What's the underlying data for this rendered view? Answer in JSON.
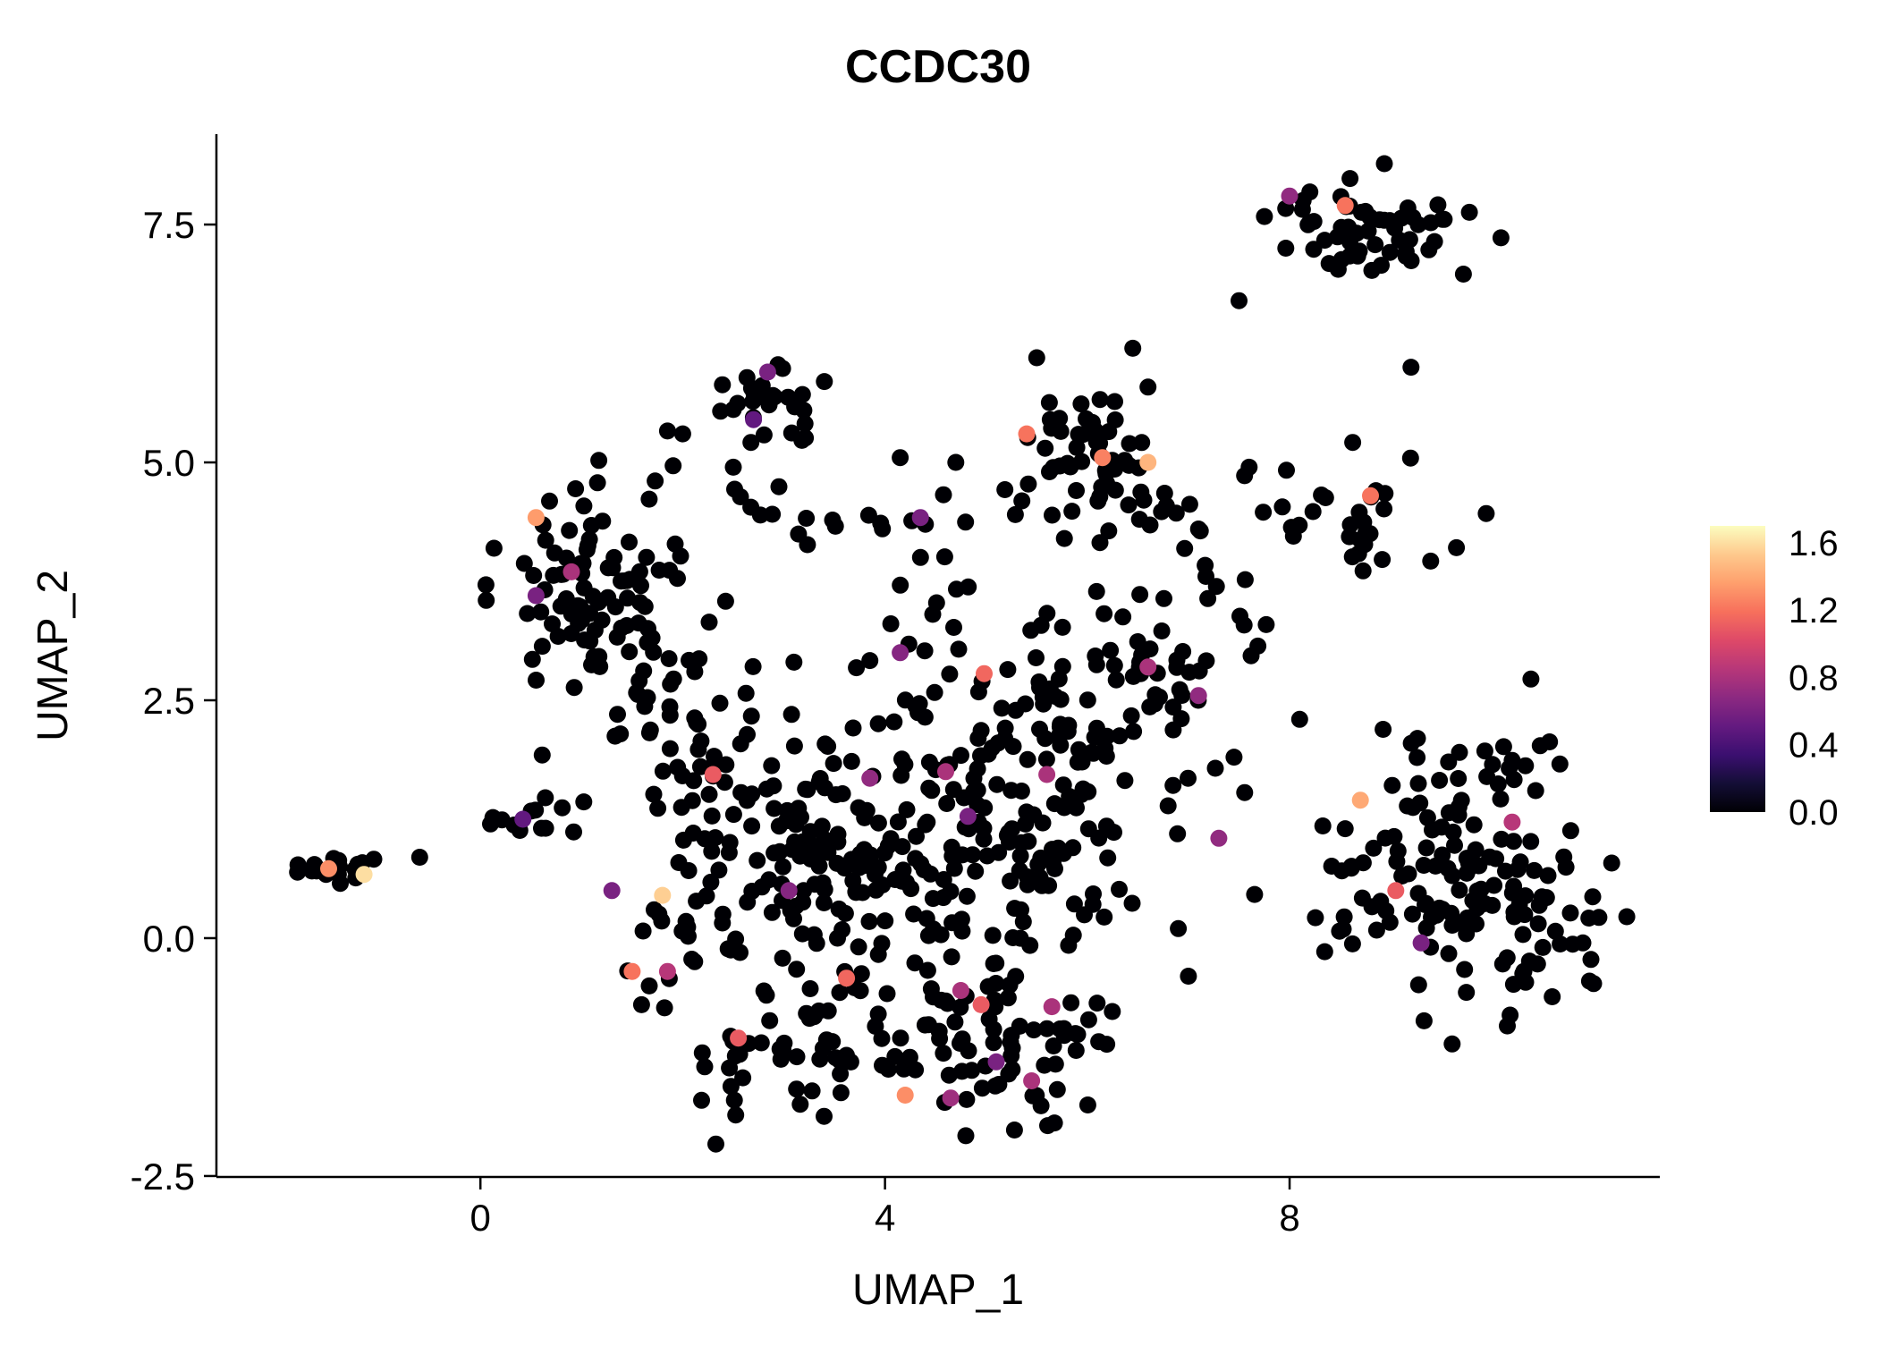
{
  "title": "CCDC30",
  "chart_data": {
    "type": "scatter",
    "title": "CCDC30",
    "xlabel": "UMAP_1",
    "ylabel": "UMAP_2",
    "xlim": [
      -2.61,
      11.66
    ],
    "ylim": [
      -2.51,
      8.45
    ],
    "x_ticks": [
      [
        0,
        "0"
      ],
      [
        4,
        "4"
      ],
      [
        8,
        "8"
      ]
    ],
    "y_ticks": [
      [
        -2.5,
        "-2.5"
      ],
      [
        0,
        "0.0"
      ],
      [
        2.5,
        "2.5"
      ],
      [
        5,
        "5.0"
      ],
      [
        7.5,
        "7.5"
      ]
    ],
    "grid": false,
    "legend_position": "right",
    "point_color_zero": "#000004",
    "legend": {
      "vmin": 0,
      "vmax": 1.7,
      "ticks": [
        [
          0,
          "0.0"
        ],
        [
          0.4,
          "0.4"
        ],
        [
          0.8,
          "0.8"
        ],
        [
          1.2,
          "1.2"
        ],
        [
          1.6,
          "1.6"
        ]
      ],
      "gradient": [
        "#000004",
        "#140e36",
        "#3b0f70",
        "#641a80",
        "#8c2981",
        "#b73779",
        "#de4968",
        "#f7705c",
        "#fe9f6d",
        "#fec98d",
        "#fcfdbf"
      ]
    },
    "clusters": [
      {
        "x": -1.45,
        "y": 0.7,
        "sx": 0.2,
        "sy": 0.11,
        "n": 20
      },
      {
        "x": 0.45,
        "y": 1.25,
        "sx": 0.16,
        "sy": 0.09,
        "n": 11
      },
      {
        "x": 1.25,
        "y": 3.65,
        "sx": 0.42,
        "sy": 0.55,
        "n": 90
      },
      {
        "x": 1.7,
        "y": 2.4,
        "sx": 0.45,
        "sy": 0.45,
        "n": 30
      },
      {
        "x": 2.85,
        "y": 5.6,
        "sx": 0.28,
        "sy": 0.25,
        "n": 26
      },
      {
        "x": 3.3,
        "y": 4.35,
        "sx": 0.85,
        "sy": 0.22,
        "n": 22
      },
      {
        "x": 5.95,
        "y": 5.15,
        "sx": 0.42,
        "sy": 0.38,
        "n": 48
      },
      {
        "x": 6.5,
        "y": 4.4,
        "sx": 0.4,
        "sy": 0.3,
        "n": 18
      },
      {
        "x": 8.45,
        "y": 4.35,
        "sx": 0.45,
        "sy": 0.3,
        "n": 30
      },
      {
        "x": 8.8,
        "y": 7.5,
        "sx": 0.5,
        "sy": 0.26,
        "n": 58
      },
      {
        "x": 4.1,
        "y": 0.9,
        "sx": 1.0,
        "sy": 0.85,
        "n": 200
      },
      {
        "x": 5.9,
        "y": 1.7,
        "sx": 0.75,
        "sy": 0.75,
        "n": 85
      },
      {
        "x": 6.6,
        "y": 2.6,
        "sx": 0.4,
        "sy": 0.4,
        "n": 20
      },
      {
        "x": 2.7,
        "y": 1.4,
        "sx": 0.55,
        "sy": 0.5,
        "n": 40
      },
      {
        "x": 2.2,
        "y": 0.3,
        "sx": 0.45,
        "sy": 0.45,
        "n": 30
      },
      {
        "x": 3.6,
        "y": -1.25,
        "sx": 0.85,
        "sy": 0.38,
        "n": 60
      },
      {
        "x": 5.3,
        "y": -1.25,
        "sx": 0.5,
        "sy": 0.4,
        "n": 48
      },
      {
        "x": 9.6,
        "y": 0.55,
        "sx": 0.7,
        "sy": 0.65,
        "n": 115
      },
      {
        "x": 10.6,
        "y": 0.1,
        "sx": 0.35,
        "sy": 0.4,
        "n": 18
      },
      {
        "x": 9.9,
        "y": 1.8,
        "sx": 0.5,
        "sy": 0.28,
        "n": 22
      },
      {
        "x": 7.2,
        "y": 3.3,
        "sx": 0.45,
        "sy": 0.5,
        "n": 16
      },
      {
        "x": 4.6,
        "y": 3.3,
        "sx": 0.5,
        "sy": 0.45,
        "n": 18
      },
      {
        "x": 5.6,
        "y": 2.6,
        "sx": 0.5,
        "sy": 0.4,
        "n": 20
      }
    ],
    "singletons_xy": [
      [
        7.5,
        6.7
      ],
      [
        9.2,
        6.0
      ],
      [
        4.15,
        5.05
      ],
      [
        4.7,
        5.0
      ],
      [
        3.4,
        5.85
      ],
      [
        2.5,
        4.95
      ],
      [
        7.6,
        4.95
      ],
      [
        7.1,
        4.3
      ],
      [
        0.1,
        1.2
      ],
      [
        -0.6,
        0.85
      ],
      [
        8.1,
        2.3
      ],
      [
        8.55,
        1.15
      ],
      [
        7.0,
        -0.4
      ],
      [
        6.9,
        0.1
      ],
      [
        2.0,
        5.3
      ],
      [
        10.9,
        -0.05
      ],
      [
        6.45,
        6.2
      ],
      [
        5.5,
        6.1
      ],
      [
        3.1,
        2.9
      ]
    ],
    "colored_points_xy_value": [
      [
        8.0,
        7.8,
        0.7
      ],
      [
        8.55,
        7.7,
        1.2
      ],
      [
        2.84,
        5.95,
        0.6
      ],
      [
        2.7,
        5.45,
        0.5
      ],
      [
        5.4,
        5.3,
        1.2
      ],
      [
        6.15,
        5.05,
        1.25
      ],
      [
        6.6,
        5.0,
        1.45
      ],
      [
        8.8,
        4.65,
        1.2
      ],
      [
        0.55,
        4.42,
        1.35
      ],
      [
        0.9,
        3.85,
        0.8
      ],
      [
        0.55,
        3.6,
        0.6
      ],
      [
        -1.5,
        0.73,
        1.3
      ],
      [
        -1.15,
        0.67,
        1.6
      ],
      [
        0.42,
        1.25,
        0.5
      ],
      [
        4.35,
        4.42,
        0.6
      ],
      [
        4.15,
        3.0,
        0.65
      ],
      [
        4.98,
        2.78,
        1.15
      ],
      [
        6.6,
        2.85,
        0.8
      ],
      [
        7.1,
        2.55,
        0.7
      ],
      [
        2.3,
        1.72,
        1.1
      ],
      [
        3.85,
        1.68,
        0.7
      ],
      [
        4.6,
        1.75,
        0.8
      ],
      [
        5.6,
        1.72,
        0.8
      ],
      [
        4.82,
        1.28,
        0.6
      ],
      [
        7.3,
        1.05,
        0.7
      ],
      [
        8.7,
        1.45,
        1.4
      ],
      [
        10.2,
        1.22,
        0.85
      ],
      [
        9.05,
        0.5,
        1.1
      ],
      [
        9.3,
        -0.05,
        0.6
      ],
      [
        1.8,
        0.45,
        1.55
      ],
      [
        1.3,
        0.5,
        0.6
      ],
      [
        3.05,
        0.5,
        0.65
      ],
      [
        1.5,
        -0.35,
        1.2
      ],
      [
        1.85,
        -0.35,
        0.85
      ],
      [
        3.62,
        -0.42,
        1.15
      ],
      [
        4.75,
        -0.55,
        0.8
      ],
      [
        4.95,
        -0.7,
        1.1
      ],
      [
        5.65,
        -0.72,
        0.8
      ],
      [
        2.55,
        -1.05,
        1.1
      ],
      [
        4.2,
        -1.65,
        1.3
      ],
      [
        4.65,
        -1.68,
        0.75
      ],
      [
        5.1,
        -1.3,
        0.6
      ],
      [
        5.45,
        -1.5,
        0.8
      ]
    ]
  }
}
